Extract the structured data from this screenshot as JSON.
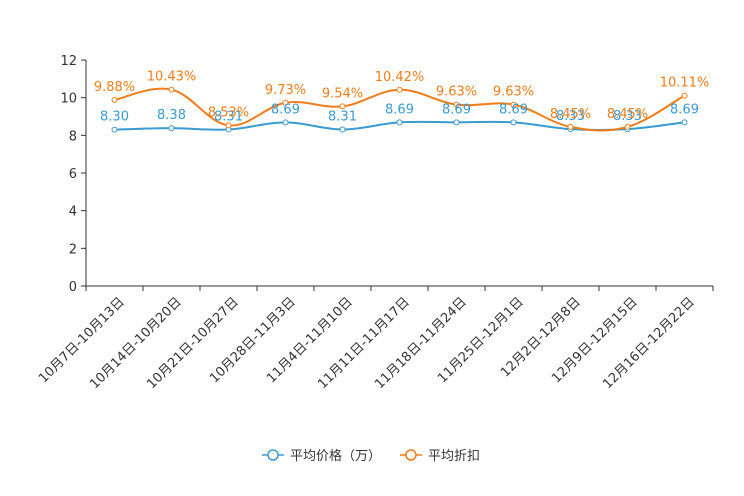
{
  "chart_data": {
    "type": "line",
    "title": "",
    "xlabel": "",
    "ylabel": "",
    "ylim": [
      0,
      12
    ],
    "yticks": [
      0,
      2,
      4,
      6,
      8,
      10,
      12
    ],
    "grid": false,
    "legend_position": "bottom-center",
    "categories": [
      "10月7日-10月13日",
      "10月14日-10月20日",
      "10月21日-10月27日",
      "10月28日-11月3日",
      "11月4日-11月10日",
      "11月11日-11月17日",
      "11月18日-11月24日",
      "11月25日-12月1日",
      "12月2日-12月8日",
      "12月9日-12月15日",
      "12月16日-12月22日"
    ],
    "series": [
      {
        "name": "平均价格（万）",
        "color": "#3a9bd0",
        "values": [
          8.3,
          8.38,
          8.31,
          8.69,
          8.31,
          8.69,
          8.69,
          8.69,
          8.33,
          8.33,
          8.69
        ],
        "labels": [
          "8.30",
          "8.38",
          "8.31",
          "8.69",
          "8.31",
          "8.69",
          "8.69",
          "8.69",
          "8.33",
          "8.33",
          "8.69"
        ]
      },
      {
        "name": "平均折扣",
        "color": "#f07d19",
        "values": [
          9.88,
          10.43,
          8.53,
          9.73,
          9.54,
          10.42,
          9.63,
          9.63,
          8.45,
          8.45,
          10.11
        ],
        "labels": [
          "9.88%",
          "10.43%",
          "8.53%",
          "9.73%",
          "9.54%",
          "10.42%",
          "9.63%",
          "9.63%",
          "8.45%",
          "8.45%",
          "10.11%"
        ]
      }
    ]
  }
}
